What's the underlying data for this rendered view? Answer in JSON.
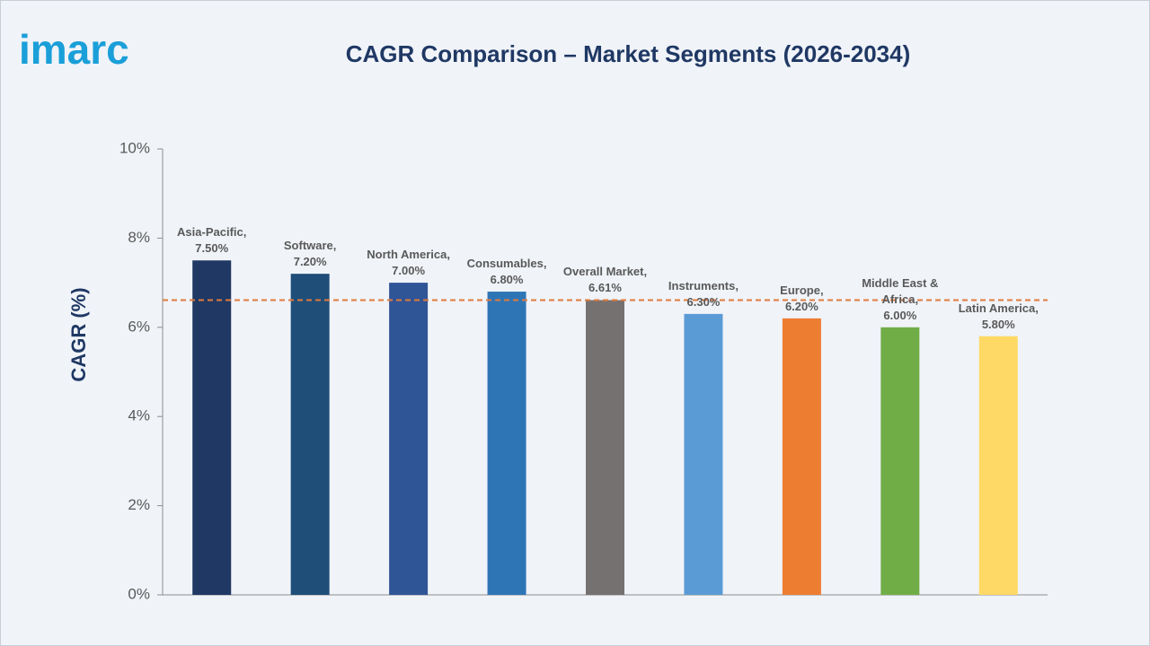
{
  "logo": "imarc",
  "chart_data": {
    "type": "bar",
    "title": "CAGR Comparison – Market Segments (2026-2034)",
    "y_label": "CAGR (%)",
    "categories": [
      "Asia-Pacific,",
      "Software,",
      "North America,",
      "Consumables,",
      "Overall Market,",
      "Instruments,",
      "Europe,",
      "Middle East & Africa,",
      "Latin America,"
    ],
    "values": [
      7.5,
      7.2,
      7.0,
      6.8,
      6.61,
      6.3,
      6.2,
      6.0,
      5.8
    ],
    "value_labels": [
      "7.50%",
      "7.20%",
      "7.00%",
      "6.80%",
      "6.61%",
      "6.30%",
      "6.20%",
      "6.00%",
      "5.80%"
    ],
    "colors": [
      "#1f3864",
      "#1f4e79",
      "#2f5597",
      "#2e75b6",
      "#767171",
      "#5b9bd5",
      "#ed7d31",
      "#70ad47",
      "#ffd966"
    ],
    "reference_line": 6.61,
    "reference_color": "#e07b3c",
    "ylim": [
      0,
      10
    ],
    "yticks": [
      {
        "value": 0,
        "label": "0%"
      },
      {
        "value": 2,
        "label": "2%"
      },
      {
        "value": 4,
        "label": "4%"
      },
      {
        "value": 6,
        "label": "6%"
      },
      {
        "value": 8,
        "label": "8%"
      },
      {
        "value": 10,
        "label": "10%"
      }
    ]
  }
}
